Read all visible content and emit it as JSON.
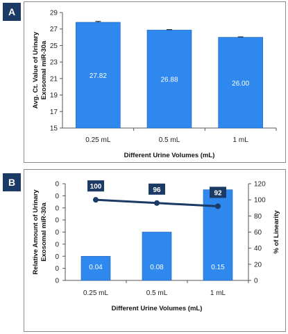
{
  "colors": {
    "bar": "#2f88ee",
    "bar_edge": "#1f5fb0",
    "line": "#1b3a66",
    "label_box": "#1b3a66",
    "axis": "#555555"
  },
  "chart_data": [
    {
      "type": "bar",
      "panel": "A",
      "categories": [
        "0.25 mL",
        "0.5 mL",
        "1 mL"
      ],
      "values": [
        27.82,
        26.88,
        26.0
      ],
      "value_labels": [
        "27.82",
        "26.88",
        "26.00"
      ],
      "error": [
        0.1,
        0.05,
        0.05
      ],
      "ylabel": [
        "Avg. Ct. Value of Urinary",
        "Exosomal miR-30a"
      ],
      "xlabel": "Different Urine Volumes (mL)",
      "ylim": [
        15,
        29
      ],
      "yticks": [
        "15",
        "17",
        "19",
        "21",
        "23",
        "25",
        "27",
        "29"
      ],
      "grid": false
    },
    {
      "type": "bar+line",
      "panel": "B",
      "categories": [
        "0.25 mL",
        "0.5 mL",
        "1 mL"
      ],
      "bar_series": {
        "values": [
          0.04,
          0.08,
          0.15
        ],
        "value_labels": [
          "0.04",
          "0.08",
          "0.15"
        ],
        "axis_max_estimate": 0.16
      },
      "line_series": {
        "values": [
          100,
          96,
          92
        ],
        "value_labels": [
          "100",
          "96",
          "92"
        ]
      },
      "ylabel_left": [
        "Relative Amount of Urinary",
        "Exosomal miR-30a"
      ],
      "ylabel_right": "% of Linearity",
      "xlabel": "Different Urine Volumes (mL)",
      "y2lim": [
        0,
        120
      ],
      "y2ticks": [
        "0",
        "20",
        "40",
        "60",
        "80",
        "100",
        "120"
      ],
      "left_tick_labels": [
        "0",
        "0",
        "0",
        "0",
        "0",
        "0",
        "0",
        "0",
        "0"
      ],
      "grid": false
    }
  ]
}
